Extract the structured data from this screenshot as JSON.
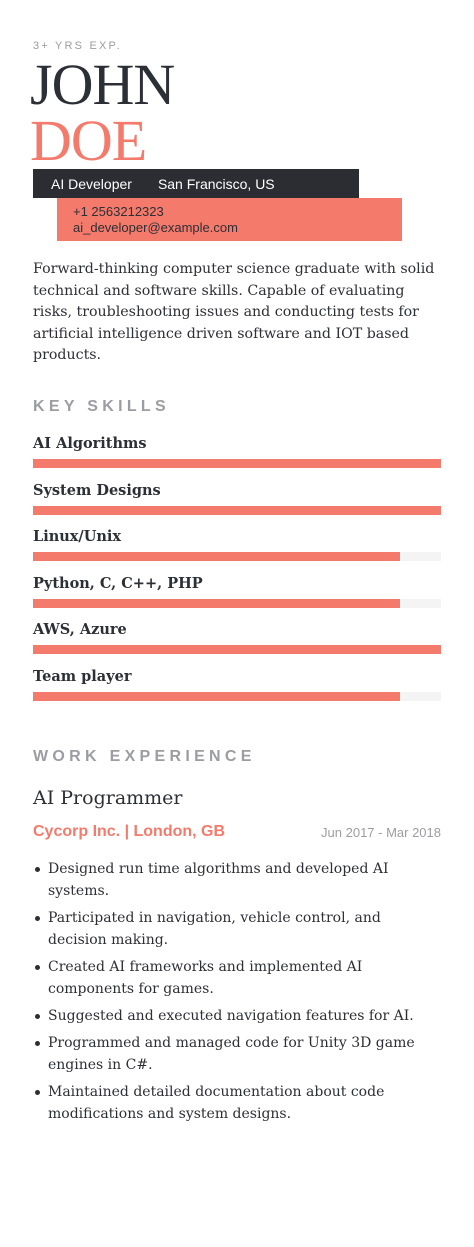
{
  "header": {
    "experience": "3+ YRS EXP.",
    "first_name": "JOHN",
    "last_name": "DOE",
    "role": "AI Developer",
    "location": "San Francisco, US",
    "phone": "+1 2563212323",
    "email": "ai_developer@example.com"
  },
  "summary": "Forward-thinking computer science graduate with solid technical and software skills. Capable of evaluating risks, troubleshooting issues and conducting tests for artificial intelligence driven software and IOT based products.",
  "skills": {
    "title": "KEY SKILLS",
    "items": [
      {
        "name": "AI Algorithms",
        "level": 1.0
      },
      {
        "name": "System Designs",
        "level": 1.0
      },
      {
        "name": "Linux/Unix",
        "level": 0.9
      },
      {
        "name": "Python, C, C++, PHP",
        "level": 0.9
      },
      {
        "name": "AWS, Azure",
        "level": 1.0
      },
      {
        "name": "Team player",
        "level": 0.9
      }
    ]
  },
  "work": {
    "title": "WORK EXPERIENCE",
    "job_title": "AI Programmer",
    "company": "Cycorp Inc. | London, GB",
    "dates": "Jun 2017 - Mar 2018",
    "bullets": [
      "Designed run time algorithms and developed AI systems.",
      "Participated in navigation, vehicle control, and decision making.",
      "Created AI frameworks and implemented AI components for games.",
      "Suggested and executed navigation features for AI.",
      "Programmed and managed code for Unity 3D game engines in C#.",
      "Maintained detailed documentation about code modifications and system designs."
    ]
  },
  "colors": {
    "accent": "#f47a6b",
    "dark": "#2b2d33",
    "muted": "#9b9da3"
  }
}
